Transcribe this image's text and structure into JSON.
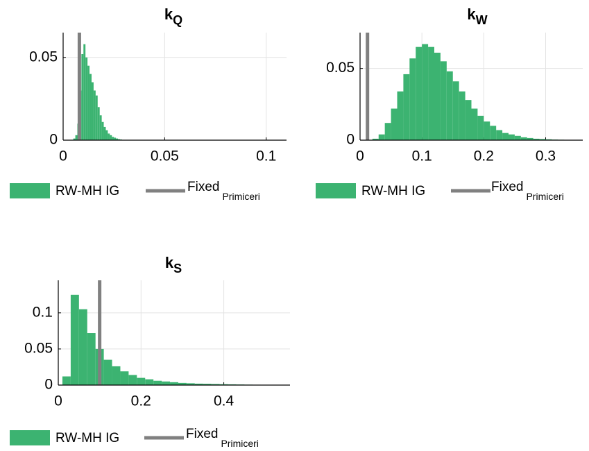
{
  "chart_data": [
    {
      "type": "histogram",
      "title": "k",
      "title_sub": "Q",
      "bins": [
        0.005,
        0.006,
        0.007,
        0.008,
        0.009,
        0.01,
        0.011,
        0.012,
        0.013,
        0.014,
        0.015,
        0.016,
        0.017,
        0.018,
        0.019,
        0.02,
        0.021,
        0.022,
        0.023,
        0.024,
        0.025,
        0.026,
        0.027,
        0.028,
        0.029,
        0.03
      ],
      "series": [
        {
          "name": "RW-MH IG",
          "color": "#3cb371",
          "values": [
            0.001,
            0.003,
            0.01,
            0.03,
            0.052,
            0.058,
            0.05,
            0.045,
            0.04,
            0.035,
            0.03,
            0.027,
            0.02,
            0.015,
            0.011,
            0.008,
            0.006,
            0.004,
            0.003,
            0.002,
            0.0015,
            0.001,
            0.0006,
            0.0004,
            0.0002
          ]
        }
      ],
      "vline": {
        "name": "Fixed",
        "name_sub": "Primiceri",
        "x": 0.008,
        "color": "#808080"
      },
      "xlim": [
        0,
        0.11
      ],
      "ylim": [
        0,
        0.065
      ],
      "xticks": [
        0,
        0.05,
        0.1
      ],
      "yticks": [
        0,
        0.05
      ],
      "grid": true
    },
    {
      "type": "histogram",
      "title": "k",
      "title_sub": "W",
      "bins": [
        0.02,
        0.03,
        0.04,
        0.05,
        0.06,
        0.07,
        0.08,
        0.09,
        0.1,
        0.11,
        0.12,
        0.13,
        0.14,
        0.15,
        0.16,
        0.17,
        0.18,
        0.19,
        0.2,
        0.21,
        0.22,
        0.23,
        0.24,
        0.25,
        0.26,
        0.27,
        0.28,
        0.29,
        0.3,
        0.31,
        0.32,
        0.33,
        0.34,
        0.35
      ],
      "series": [
        {
          "name": "RW-MH IG",
          "color": "#3cb371",
          "values": [
            0.001,
            0.004,
            0.012,
            0.022,
            0.034,
            0.046,
            0.057,
            0.065,
            0.067,
            0.065,
            0.061,
            0.055,
            0.048,
            0.041,
            0.034,
            0.028,
            0.022,
            0.017,
            0.013,
            0.01,
            0.007,
            0.005,
            0.004,
            0.003,
            0.002,
            0.0015,
            0.001,
            0.0008,
            0.0006,
            0.0004,
            0.0003,
            0.0002,
            0.0001
          ]
        }
      ],
      "vline": {
        "name": "Fixed",
        "name_sub": "Primiceri",
        "x": 0.012,
        "color": "#808080"
      },
      "xlim": [
        0,
        0.36
      ],
      "ylim": [
        0,
        0.075
      ],
      "xticks": [
        0,
        0.1,
        0.2,
        0.3
      ],
      "yticks": [
        0,
        0.05
      ],
      "grid": true
    },
    {
      "type": "histogram",
      "title": "k",
      "title_sub": "S",
      "bins": [
        0.01,
        0.03,
        0.05,
        0.07,
        0.09,
        0.11,
        0.13,
        0.15,
        0.17,
        0.19,
        0.21,
        0.23,
        0.25,
        0.27,
        0.29,
        0.31,
        0.33,
        0.35,
        0.37,
        0.39,
        0.41,
        0.43,
        0.45,
        0.47,
        0.49,
        0.51,
        0.53
      ],
      "series": [
        {
          "name": "RW-MH IG",
          "color": "#3cb371",
          "values": [
            0.012,
            0.125,
            0.105,
            0.072,
            0.05,
            0.035,
            0.026,
            0.019,
            0.014,
            0.01,
            0.008,
            0.006,
            0.005,
            0.004,
            0.003,
            0.0025,
            0.002,
            0.0018,
            0.0015,
            0.0012,
            0.001,
            0.0008,
            0.0006,
            0.0005,
            0.0004,
            0.0003
          ]
        }
      ],
      "vline": {
        "name": "Fixed",
        "name_sub": "Primiceri",
        "x": 0.1,
        "color": "#808080"
      },
      "xlim": [
        0,
        0.56
      ],
      "ylim": [
        0,
        0.145
      ],
      "xticks": [
        0,
        0.2,
        0.4
      ],
      "yticks": [
        0,
        0.05,
        0.1
      ],
      "grid": true
    }
  ]
}
